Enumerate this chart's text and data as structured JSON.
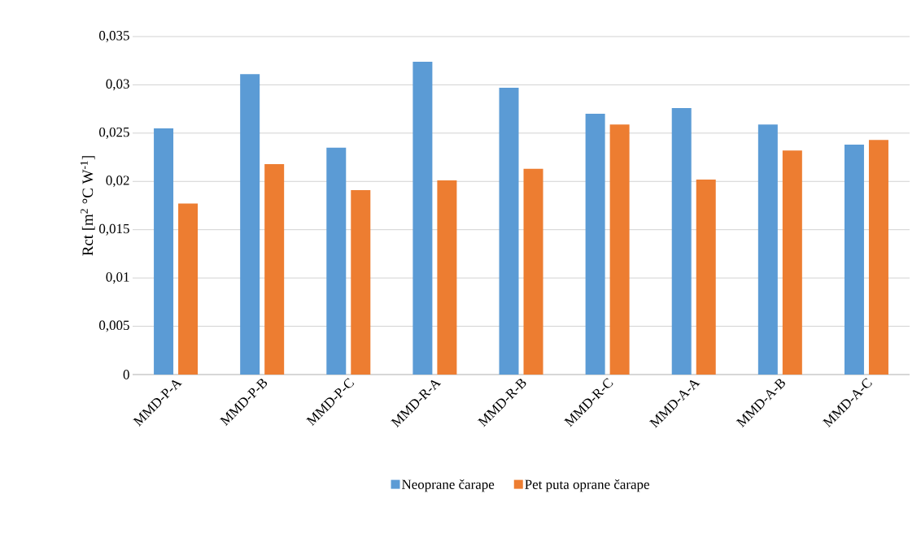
{
  "chart_data": {
    "type": "bar",
    "ylabel": "Rct [m$^{2}$ °C W$^{-1}$]",
    "categories": [
      "MMD-P-A",
      "MMD-P-B",
      "MMD-P-C",
      "MMD-R-A",
      "MMD-R-B",
      "MMD-R-C",
      "MMD-A-A",
      "MMD-A-B",
      "MMD-A-C"
    ],
    "series": [
      {
        "name": "Neoprane čarape",
        "color": "#5b9bd5",
        "values": [
          0.0255,
          0.0311,
          0.0235,
          0.0324,
          0.0297,
          0.027,
          0.0276,
          0.0259,
          0.0238
        ]
      },
      {
        "name": "Pet puta oprane čarape",
        "color": "#ed7d31",
        "values": [
          0.0177,
          0.0218,
          0.0191,
          0.0201,
          0.0213,
          0.0259,
          0.0202,
          0.0232,
          0.0243
        ]
      }
    ],
    "ylim": [
      0,
      0.035
    ],
    "yticks": [
      0,
      {
        "value": 0.005,
        "label": "0,005"
      },
      {
        "value": 0.01,
        "label": "0,01"
      },
      {
        "value": 0.015,
        "label": "0,015"
      },
      {
        "value": 0.02,
        "label": "0,02"
      },
      {
        "value": 0.025,
        "label": "0,025"
      },
      {
        "value": 0.03,
        "label": "0,03"
      },
      {
        "value": 0.035,
        "label": "0,035"
      }
    ],
    "grid": "y",
    "legend": "bottom"
  }
}
